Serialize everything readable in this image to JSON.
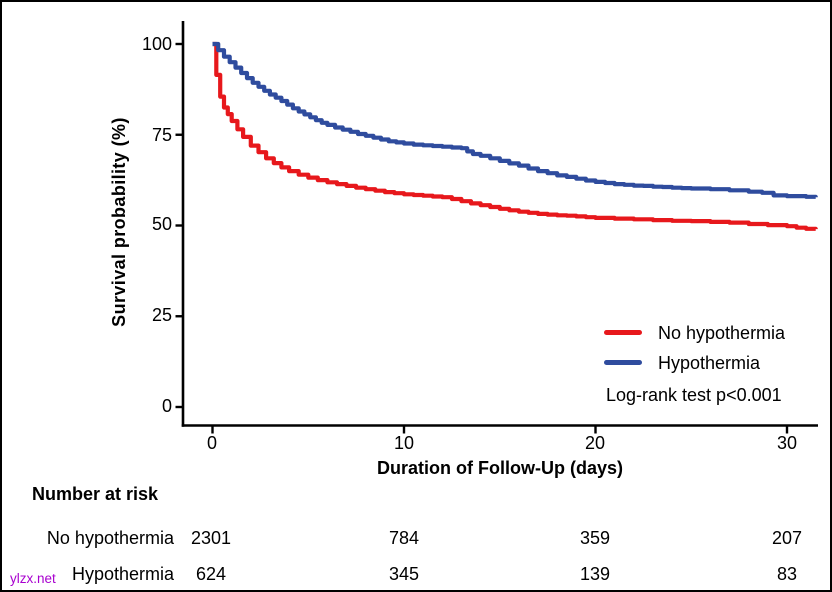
{
  "chart_data": {
    "type": "line",
    "subtype": "kaplan-meier-step-curves",
    "title": "",
    "xlabel": "Duration of Follow-Up (days)",
    "ylabel": "Survival probability (%)",
    "xlim": [
      0,
      31.5
    ],
    "ylim": [
      0,
      100
    ],
    "x_ticks": [
      0,
      10,
      20,
      30
    ],
    "y_ticks": [
      0,
      25,
      50,
      75,
      100
    ],
    "grid": false,
    "legend_position": "inside-bottom-right",
    "annotation": "Log-rank test p<0.001",
    "series": [
      {
        "name": "No hypothermia",
        "color": "#e7181c",
        "points": [
          [
            0,
            100
          ],
          [
            0.2,
            91.5
          ],
          [
            0.4,
            85.5
          ],
          [
            0.6,
            82.5
          ],
          [
            0.8,
            80.7
          ],
          [
            1.0,
            78.8
          ],
          [
            1.3,
            76.5
          ],
          [
            1.6,
            74.4
          ],
          [
            2.0,
            72.0
          ],
          [
            2.4,
            70.2
          ],
          [
            2.8,
            68.5
          ],
          [
            3.2,
            67.2
          ],
          [
            3.6,
            66.0
          ],
          [
            4.0,
            65.0
          ],
          [
            4.5,
            64.0
          ],
          [
            5.0,
            63.2
          ],
          [
            5.5,
            62.5
          ],
          [
            6.0,
            61.9
          ],
          [
            6.5,
            61.4
          ],
          [
            7.0,
            60.9
          ],
          [
            7.5,
            60.4
          ],
          [
            8.0,
            60.0
          ],
          [
            8.5,
            59.6
          ],
          [
            9.0,
            59.2
          ],
          [
            9.5,
            58.9
          ],
          [
            10.0,
            58.6
          ],
          [
            10.5,
            58.4
          ],
          [
            11.0,
            58.2
          ],
          [
            11.5,
            58.0
          ],
          [
            12.0,
            57.8
          ],
          [
            12.5,
            57.3
          ],
          [
            13.0,
            56.7
          ],
          [
            13.5,
            56.1
          ],
          [
            14.0,
            55.6
          ],
          [
            14.5,
            55.1
          ],
          [
            15.0,
            54.6
          ],
          [
            15.5,
            54.2
          ],
          [
            16.0,
            53.8
          ],
          [
            16.5,
            53.5
          ],
          [
            17.0,
            53.2
          ],
          [
            17.5,
            53.0
          ],
          [
            18.0,
            52.8
          ],
          [
            18.5,
            52.7
          ],
          [
            19.0,
            52.5
          ],
          [
            19.5,
            52.3
          ],
          [
            20.0,
            52.1
          ],
          [
            21.0,
            51.9
          ],
          [
            22.0,
            51.7
          ],
          [
            23.0,
            51.5
          ],
          [
            24.0,
            51.3
          ],
          [
            25.0,
            51.2
          ],
          [
            26.0,
            51.0
          ],
          [
            27.0,
            50.8
          ],
          [
            28.0,
            50.4
          ],
          [
            29.0,
            50.1
          ],
          [
            30.0,
            49.8
          ],
          [
            30.5,
            49.4
          ],
          [
            31.0,
            49.1
          ],
          [
            31.5,
            49.0
          ]
        ]
      },
      {
        "name": "Hypothermia",
        "color": "#2f4c9e",
        "points": [
          [
            0,
            100
          ],
          [
            0.3,
            98.3
          ],
          [
            0.6,
            96.5
          ],
          [
            0.9,
            95.0
          ],
          [
            1.2,
            93.5
          ],
          [
            1.5,
            92.0
          ],
          [
            1.8,
            90.6
          ],
          [
            2.1,
            89.3
          ],
          [
            2.4,
            88.2
          ],
          [
            2.7,
            87.1
          ],
          [
            3.0,
            86.1
          ],
          [
            3.3,
            85.2
          ],
          [
            3.6,
            84.3
          ],
          [
            3.9,
            83.3
          ],
          [
            4.2,
            82.3
          ],
          [
            4.5,
            81.4
          ],
          [
            4.8,
            80.6
          ],
          [
            5.1,
            79.8
          ],
          [
            5.4,
            79.0
          ],
          [
            5.7,
            78.3
          ],
          [
            6.0,
            77.7
          ],
          [
            6.4,
            77.0
          ],
          [
            6.8,
            76.4
          ],
          [
            7.2,
            75.8
          ],
          [
            7.6,
            75.2
          ],
          [
            8.0,
            74.7
          ],
          [
            8.4,
            74.2
          ],
          [
            8.8,
            73.7
          ],
          [
            9.2,
            73.2
          ],
          [
            9.6,
            72.9
          ],
          [
            10.0,
            72.6
          ],
          [
            10.5,
            72.3
          ],
          [
            11.0,
            72.1
          ],
          [
            11.5,
            71.9
          ],
          [
            12.0,
            71.7
          ],
          [
            12.5,
            71.5
          ],
          [
            13.0,
            71.3
          ],
          [
            13.3,
            70.4
          ],
          [
            13.6,
            69.7
          ],
          [
            14.0,
            69.2
          ],
          [
            14.5,
            68.5
          ],
          [
            15.0,
            67.8
          ],
          [
            15.5,
            67.1
          ],
          [
            16.0,
            66.5
          ],
          [
            16.5,
            65.7
          ],
          [
            17.0,
            65.0
          ],
          [
            17.5,
            64.4
          ],
          [
            18.0,
            63.8
          ],
          [
            18.5,
            63.4
          ],
          [
            19.0,
            62.9
          ],
          [
            19.5,
            62.4
          ],
          [
            20.0,
            62.0
          ],
          [
            20.5,
            61.7
          ],
          [
            21.0,
            61.4
          ],
          [
            21.5,
            61.2
          ],
          [
            22.0,
            61.0
          ],
          [
            22.5,
            60.9
          ],
          [
            23.0,
            60.7
          ],
          [
            23.5,
            60.6
          ],
          [
            24.0,
            60.4
          ],
          [
            24.5,
            60.3
          ],
          [
            25.0,
            60.2
          ],
          [
            26.0,
            60.0
          ],
          [
            27.0,
            59.7
          ],
          [
            28.0,
            59.3
          ],
          [
            28.7,
            59.0
          ],
          [
            29.3,
            58.3
          ],
          [
            30.0,
            58.1
          ],
          [
            31.0,
            57.9
          ],
          [
            31.5,
            57.8
          ]
        ]
      }
    ]
  },
  "legend": {
    "annotation": "Log-rank test p<0.001"
  },
  "risk_table": {
    "title": "Number at risk",
    "rows": [
      {
        "label": "No hypothermia",
        "values": [
          "2301",
          "784",
          "359",
          "207"
        ]
      },
      {
        "label": "Hypothermia",
        "values": [
          "624",
          "345",
          "139",
          "83"
        ]
      }
    ]
  },
  "watermark": {
    "text": "ylzx.net",
    "color": "#a800cf"
  }
}
